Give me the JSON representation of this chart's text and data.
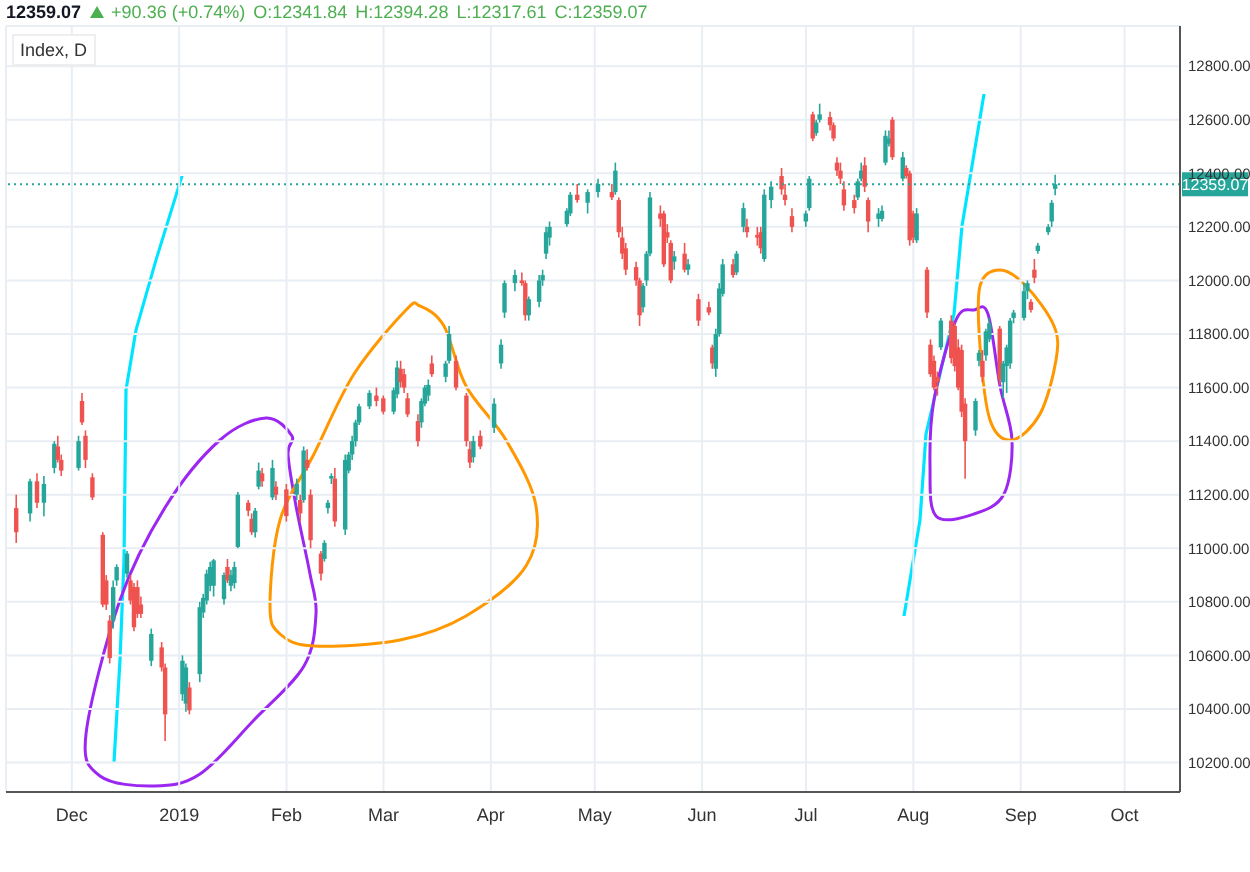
{
  "chart_data": {
    "type": "candlestick",
    "title": "Index, D",
    "annotations": [
      "12359.07",
      "+90.36 (+0.74%)",
      "O:12341.84",
      "H:12394.28",
      "L:12317.61",
      "C:12359.07"
    ],
    "colors": [
      "#ef5350",
      "#26a69a",
      "#ef5350",
      "#26a69a",
      "#26a69a",
      "#ef5350",
      "#ef5350",
      "#26a69a",
      "#ef5350",
      "#ef5350",
      "#ef5350",
      "#ef5350",
      "#ef5350",
      "#ef5350",
      "#26a69a",
      "#26a69a",
      "#26a69a",
      "#ef5350",
      "#ef5350",
      "#ef5350",
      "#ef5350",
      "#26a69a",
      "#ef5350",
      "#ef5350",
      "#26a69a",
      "#26a69a",
      "#ef5350",
      "#26a69a",
      "#26a69a",
      "#26a69a",
      "#26a69a",
      "#26a69a",
      "#26a69a",
      "#ef5350",
      "#26a69a",
      "#26a69a",
      "#26a69a",
      "#ef5350",
      "#ef5350",
      "#26a69a",
      "#26a69a",
      "#ef5350",
      "#26a69a",
      "#ef5350",
      "#ef5350",
      "#26a69a",
      "#ef5350",
      "#26a69a",
      "#ef5350",
      "#ef5350",
      "#ef5350",
      "#26a69a",
      "#26a69a",
      "#26a69a",
      "#ef5350",
      "#26a69a",
      "#26a69a",
      "#26a69a",
      "#26a69a",
      "#26a69a",
      "#26a69a",
      "#ef5350",
      "#ef5350",
      "#26a69a",
      "#26a69a",
      "#ef5350",
      "#ef5350",
      "#ef5350",
      "#ef5350",
      "#26a69a",
      "#26a69a",
      "#26a69a",
      "#ef5350",
      "#26a69a",
      "#26a69a",
      "#ef5350",
      "#ef5350",
      "#ef5350",
      "#26a69a",
      "#ef5350",
      "#26a69a",
      "#26a69a",
      "#26a69a",
      "#26a69a",
      "#ef5350",
      "#ef5350",
      "#26a69a",
      "#26a69a",
      "#26a69a",
      "#26a69a",
      "#26a69a",
      "#26a69a",
      "#26a69a",
      "#ef5350",
      "#26a69a",
      "#26a69a",
      "#ef5350",
      "#26a69a",
      "#ef5350",
      "#ef5350",
      "#ef5350",
      "#ef5350",
      "#ef5350",
      "#26a69a",
      "#26a69a",
      "#26a69a",
      "#ef5350",
      "#ef5350",
      "#ef5350",
      "#ef5350",
      "#26a69a",
      "#ef5350",
      "#26a69a",
      "#ef5350",
      "#ef5350",
      "#ef5350",
      "#26a69a",
      "#26a69a",
      "#26a69a",
      "#ef5350",
      "#26a69a",
      "#26a69a",
      "#ef5350",
      "#ef5350",
      "#ef5350",
      "#26a69a",
      "#26a69a",
      "#ef5350",
      "#ef5350",
      "#ef5350",
      "#26a69a",
      "#26a69a",
      "#ef5350",
      "#26a69a",
      "#26a69a",
      "#ef5350",
      "#ef5350",
      "#ef5350",
      "#ef5350",
      "#ef5350",
      "#ef5350",
      "#26a69a",
      "#26a69a",
      "#ef5350",
      "#ef5350",
      "#26a69a",
      "#26a69a",
      "#26a69a",
      "#26a69a",
      "#ef5350",
      "#26a69a",
      "#ef5350",
      "#ef5350",
      "#ef5350",
      "#26a69a",
      "#ef5350",
      "#ef5350",
      "#ef5350",
      "#ef5350",
      "#26a69a",
      "#ef5350",
      "#ef5350",
      "#ef5350",
      "#ef5350",
      "#ef5350",
      "#26a69a",
      "#26a69a",
      "#ef5350",
      "#26a69a",
      "#26a69a",
      "#ef5350",
      "#26a69a",
      "#26a69a",
      "#26a69a",
      "#26a69a",
      "#26a69a",
      "#26a69a",
      "#ef5350",
      "#ef5350",
      "#26a69a",
      "#26a69a",
      "#26a69a",
      "#26a69a"
    ],
    "x": [
      "2018-11-15",
      "2018-11-19",
      "2018-11-21",
      "2018-11-23",
      "2018-11-26",
      "2018-11-27",
      "2018-11-28",
      "2018-12-03",
      "2018-12-04",
      "2018-12-05",
      "2018-12-07",
      "2018-12-10",
      "2018-12-11",
      "2018-12-12",
      "2018-12-13",
      "2018-12-14",
      "2018-12-17",
      "2018-12-18",
      "2018-12-19",
      "2018-12-20",
      "2018-12-21",
      "2018-12-24",
      "2018-12-27",
      "2018-12-28",
      "2019-01-02",
      "2019-01-03",
      "2019-01-04",
      "2019-01-07",
      "2019-01-08",
      "2019-01-09",
      "2019-01-10",
      "2019-01-11",
      "2019-01-14",
      "2019-01-15",
      "2019-01-16",
      "2019-01-17",
      "2019-01-18",
      "2019-01-21",
      "2019-01-22",
      "2019-01-23",
      "2019-01-24",
      "2019-01-25",
      "2019-01-28",
      "2019-01-29",
      "2019-02-01",
      "2019-02-04",
      "2019-02-05",
      "2019-02-06",
      "2019-02-07",
      "2019-02-08",
      "2019-02-11",
      "2019-02-12",
      "2019-02-13",
      "2019-02-14",
      "2019-02-15",
      "2019-02-18",
      "2019-02-19",
      "2019-02-20",
      "2019-02-21",
      "2019-02-22",
      "2019-02-25",
      "2019-02-27",
      "2019-03-01",
      "2019-03-04",
      "2019-03-05",
      "2019-03-06",
      "2019-03-07",
      "2019-03-08",
      "2019-03-11",
      "2019-03-12",
      "2019-03-13",
      "2019-03-14",
      "2019-03-15",
      "2019-03-19",
      "2019-03-20",
      "2019-03-22",
      "2019-03-25",
      "2019-03-26",
      "2019-03-27",
      "2019-03-29",
      "2019-04-02",
      "2019-04-04",
      "2019-04-05",
      "2019-04-08",
      "2019-04-10",
      "2019-04-11",
      "2019-04-12",
      "2019-04-15",
      "2019-04-16",
      "2019-04-17",
      "2019-04-18",
      "2019-04-23",
      "2019-04-24",
      "2019-04-26",
      "2019-04-29",
      "2019-05-02",
      "2019-05-06",
      "2019-05-07",
      "2019-05-08",
      "2019-05-09",
      "2019-05-10",
      "2019-05-13",
      "2019-05-14",
      "2019-05-15",
      "2019-05-16",
      "2019-05-17",
      "2019-05-20",
      "2019-05-21",
      "2019-05-22",
      "2019-05-23",
      "2019-05-24",
      "2019-05-27",
      "2019-05-28",
      "2019-05-31",
      "2019-06-03",
      "2019-06-04",
      "2019-06-05",
      "2019-06-06",
      "2019-06-07",
      "2019-06-10",
      "2019-06-11",
      "2019-06-13",
      "2019-06-14",
      "2019-06-17",
      "2019-06-18",
      "2019-06-19",
      "2019-06-21",
      "2019-06-24",
      "2019-06-25",
      "2019-06-27",
      "2019-07-01",
      "2019-07-02",
      "2019-07-03",
      "2019-07-04",
      "2019-07-05",
      "2019-07-08",
      "2019-07-09",
      "2019-07-10",
      "2019-07-11",
      "2019-07-12",
      "2019-07-15",
      "2019-07-16",
      "2019-07-17",
      "2019-07-18",
      "2019-07-19",
      "2019-07-22",
      "2019-07-23",
      "2019-07-24",
      "2019-07-25",
      "2019-07-26",
      "2019-07-29",
      "2019-07-30",
      "2019-07-31",
      "2019-08-01",
      "2019-08-02",
      "2019-08-05",
      "2019-08-06",
      "2019-08-07",
      "2019-08-08",
      "2019-08-09",
      "2019-08-12",
      "2019-08-13",
      "2019-08-14",
      "2019-08-15",
      "2019-08-16",
      "2019-08-19",
      "2019-08-20",
      "2019-08-21",
      "2019-08-22",
      "2019-08-23",
      "2019-08-26",
      "2019-08-27",
      "2019-08-28",
      "2019-08-29",
      "2019-08-30",
      "2019-09-02",
      "2019-09-03",
      "2019-09-04",
      "2019-09-05",
      "2019-09-06",
      "2019-09-09",
      "2019-09-10",
      "2019-09-11"
    ],
    "ohlc": [
      [
        11150,
        11200,
        11020,
        11060
      ],
      [
        11130,
        11260,
        11100,
        11250
      ],
      [
        11250,
        11280,
        11150,
        11170
      ],
      [
        11170,
        11270,
        11120,
        11240
      ],
      [
        11300,
        11400,
        11280,
        11390
      ],
      [
        11380,
        11420,
        11320,
        11330
      ],
      [
        11330,
        11350,
        11270,
        11290
      ],
      [
        11300,
        11420,
        11290,
        11400
      ],
      [
        11550,
        11580,
        11460,
        11470
      ],
      [
        11420,
        11440,
        11300,
        11330
      ],
      [
        11265,
        11280,
        11180,
        11190
      ],
      [
        11050,
        11060,
        10780,
        10790
      ],
      [
        10880,
        10900,
        10770,
        10790
      ],
      [
        10730,
        10750,
        10570,
        10590
      ],
      [
        10730,
        10880,
        10700,
        10855
      ],
      [
        10880,
        10940,
        10860,
        10930
      ],
      [
        10905,
        10990,
        10890,
        10980
      ],
      [
        10880,
        10900,
        10790,
        10805
      ],
      [
        10855,
        10870,
        10690,
        10705
      ],
      [
        10855,
        10880,
        10740,
        10755
      ],
      [
        10790,
        10820,
        10740,
        10755
      ],
      [
        10580,
        10700,
        10560,
        10680
      ],
      [
        10630,
        10650,
        10540,
        10555
      ],
      [
        10555,
        10570,
        10280,
        10380
      ],
      [
        10455,
        10600,
        10430,
        10580
      ],
      [
        10420,
        10570,
        10390,
        10555
      ],
      [
        10480,
        10500,
        10380,
        10395
      ],
      [
        10530,
        10800,
        10500,
        10780
      ],
      [
        10760,
        10830,
        10740,
        10815
      ],
      [
        10805,
        10920,
        10790,
        10905
      ],
      [
        10860,
        10950,
        10840,
        10930
      ],
      [
        10860,
        10960,
        10820,
        10955
      ],
      [
        10810,
        10910,
        10790,
        10900
      ],
      [
        10930,
        10960,
        10870,
        10880
      ],
      [
        10860,
        10920,
        10840,
        10900
      ],
      [
        10870,
        10950,
        10850,
        10930
      ],
      [
        11005,
        11210,
        11000,
        11200
      ],
      [
        11170,
        11180,
        11120,
        11140
      ],
      [
        11110,
        11130,
        11050,
        11060
      ],
      [
        11060,
        11150,
        11040,
        11140
      ],
      [
        11230,
        11320,
        11220,
        11290
      ],
      [
        11280,
        11300,
        11230,
        11250
      ],
      [
        11190,
        11330,
        11180,
        11300
      ],
      [
        11230,
        11250,
        11180,
        11200
      ],
      [
        11220,
        11240,
        11100,
        11120
      ],
      [
        11200,
        11260,
        11180,
        11240
      ],
      [
        11180,
        11200,
        11100,
        11130
      ],
      [
        11180,
        11380,
        11170,
        11365
      ],
      [
        11330,
        11370,
        11290,
        11300
      ],
      [
        11200,
        11220,
        11000,
        11030
      ],
      [
        10980,
        10990,
        10880,
        10905
      ],
      [
        10960,
        11030,
        10950,
        11020
      ],
      [
        11150,
        11180,
        11130,
        11170
      ],
      [
        11260,
        11280,
        11240,
        11270
      ],
      [
        11260,
        11300,
        11080,
        11100
      ],
      [
        11070,
        11350,
        11050,
        11330
      ],
      [
        11290,
        11360,
        11280,
        11350
      ],
      [
        11350,
        11420,
        11330,
        11400
      ],
      [
        11400,
        11480,
        11380,
        11470
      ],
      [
        11470,
        11540,
        11460,
        11530
      ],
      [
        11530,
        11590,
        11520,
        11580
      ],
      [
        11570,
        11600,
        11530,
        11550
      ],
      [
        11560,
        11570,
        11500,
        11510
      ],
      [
        11510,
        11600,
        11500,
        11590
      ],
      [
        11575,
        11700,
        11560,
        11675
      ],
      [
        11670,
        11700,
        11600,
        11620
      ],
      [
        11650,
        11670,
        11580,
        11600
      ],
      [
        11560,
        11580,
        11490,
        11500
      ],
      [
        11475,
        11500,
        11380,
        11400
      ],
      [
        11470,
        11560,
        11450,
        11550
      ],
      [
        11540,
        11610,
        11530,
        11600
      ],
      [
        11570,
        11630,
        11550,
        11610
      ],
      [
        11690,
        11720,
        11640,
        11650
      ],
      [
        11640,
        11700,
        11620,
        11690
      ],
      [
        11700,
        11830,
        11690,
        11800
      ],
      [
        11700,
        11720,
        11590,
        11600
      ],
      [
        11570,
        11580,
        11380,
        11400
      ],
      [
        11370,
        11400,
        11300,
        11320
      ],
      [
        11340,
        11420,
        11320,
        11400
      ],
      [
        11420,
        11440,
        11370,
        11380
      ],
      [
        11450,
        11560,
        11430,
        11540
      ],
      [
        11690,
        11780,
        11670,
        11760
      ],
      [
        11880,
        12000,
        11860,
        11990
      ],
      [
        11990,
        12040,
        11960,
        12020
      ],
      [
        12000,
        12030,
        11980,
        11990
      ],
      [
        11990,
        12000,
        11850,
        11870
      ],
      [
        11870,
        11940,
        11850,
        11930
      ],
      [
        11920,
        12020,
        11900,
        12000
      ],
      [
        12000,
        12040,
        11980,
        12020
      ],
      [
        12100,
        12200,
        12080,
        12180
      ],
      [
        12160,
        12220,
        12130,
        12200
      ],
      [
        12210,
        12270,
        12200,
        12260
      ],
      [
        12250,
        12330,
        12240,
        12320
      ],
      [
        12320,
        12360,
        12290,
        12300
      ],
      [
        12290,
        12340,
        12250,
        12330
      ],
      [
        12330,
        12380,
        12310,
        12360
      ],
      [
        12330,
        12360,
        12300,
        12310
      ],
      [
        12330,
        12440,
        12320,
        12410
      ],
      [
        12300,
        12310,
        12160,
        12180
      ],
      [
        12160,
        12200,
        12080,
        12100
      ],
      [
        12120,
        12140,
        12020,
        12040
      ],
      [
        12050,
        12070,
        11980,
        12000
      ],
      [
        12000,
        12010,
        11830,
        11870
      ],
      [
        11900,
        11990,
        11880,
        11980
      ],
      [
        12000,
        12110,
        11980,
        12100
      ],
      [
        12100,
        12330,
        12090,
        12310
      ],
      [
        12250,
        12280,
        12200,
        12230
      ],
      [
        12250,
        12260,
        12050,
        12060
      ],
      [
        12180,
        12210,
        12140,
        12160
      ],
      [
        12140,
        12150,
        11990,
        12000
      ],
      [
        12070,
        12110,
        12040,
        12090
      ],
      [
        12100,
        12140,
        12030,
        12040
      ],
      [
        12040,
        12080,
        12020,
        12060
      ],
      [
        11930,
        11950,
        11830,
        11850
      ],
      [
        11900,
        11920,
        11870,
        11880
      ],
      [
        11750,
        11760,
        11670,
        11690
      ],
      [
        11670,
        11820,
        11640,
        11800
      ],
      [
        11800,
        11990,
        11790,
        11970
      ],
      [
        11950,
        12080,
        11940,
        12060
      ],
      [
        12060,
        12080,
        12010,
        12020
      ],
      [
        12030,
        12110,
        12020,
        12100
      ],
      [
        12200,
        12290,
        12180,
        12270
      ],
      [
        12200,
        12230,
        12160,
        12180
      ],
      [
        12170,
        12200,
        12130,
        12160
      ],
      [
        12180,
        12200,
        12100,
        12120
      ],
      [
        12080,
        12340,
        12070,
        12320
      ],
      [
        12300,
        12370,
        12270,
        12350
      ],
      [
        12390,
        12420,
        12320,
        12340
      ],
      [
        12320,
        12360,
        12280,
        12300
      ],
      [
        12240,
        12270,
        12180,
        12200
      ],
      [
        12220,
        12260,
        12200,
        12250
      ],
      [
        12270,
        12390,
        12260,
        12380
      ],
      [
        12620,
        12630,
        12520,
        12530
      ],
      [
        12550,
        12600,
        12540,
        12590
      ],
      [
        12600,
        12660,
        12590,
        12620
      ],
      [
        12610,
        12630,
        12560,
        12580
      ],
      [
        12580,
        12590,
        12520,
        12530
      ],
      [
        12440,
        12460,
        12390,
        12410
      ],
      [
        12410,
        12440,
        12360,
        12380
      ],
      [
        12340,
        12370,
        12260,
        12280
      ],
      [
        12300,
        12320,
        12250,
        12270
      ],
      [
        12310,
        12380,
        12300,
        12370
      ],
      [
        12380,
        12440,
        12370,
        12410
      ],
      [
        12430,
        12460,
        12330,
        12350
      ],
      [
        12300,
        12310,
        12180,
        12220
      ],
      [
        12230,
        12270,
        12200,
        12250
      ],
      [
        12230,
        12280,
        12220,
        12260
      ],
      [
        12440,
        12560,
        12430,
        12540
      ],
      [
        12510,
        12560,
        12500,
        12530
      ],
      [
        12600,
        12610,
        12450,
        12460
      ],
      [
        12380,
        12480,
        12370,
        12460
      ],
      [
        12420,
        12430,
        12380,
        12390
      ],
      [
        12400,
        12410,
        12130,
        12150
      ],
      [
        12250,
        12260,
        12140,
        12160
      ],
      [
        12150,
        12270,
        12140,
        12250
      ],
      [
        12040,
        12050,
        11860,
        11880
      ],
      [
        11760,
        11780,
        11640,
        11650
      ],
      [
        11700,
        11720,
        11590,
        11600
      ],
      [
        11640,
        11660,
        11570,
        11620
      ],
      [
        11750,
        11860,
        11740,
        11850
      ],
      [
        11850,
        11870,
        11690,
        11710
      ],
      [
        11830,
        11840,
        11660,
        11680
      ],
      [
        11750,
        11780,
        11590,
        11600
      ],
      [
        11740,
        11760,
        11490,
        11510
      ],
      [
        11540,
        11560,
        11260,
        11400
      ],
      [
        11440,
        11560,
        11420,
        11550
      ],
      [
        11700,
        11740,
        11680,
        11730
      ],
      [
        11700,
        11740,
        11620,
        11640
      ],
      [
        11720,
        11820,
        11700,
        11810
      ],
      [
        11780,
        11860,
        11770,
        11840
      ],
      [
        11820,
        11830,
        11610,
        11630
      ],
      [
        11620,
        11700,
        11560,
        11690
      ],
      [
        11680,
        11760,
        11580,
        11750
      ],
      [
        11690,
        11860,
        11670,
        11850
      ],
      [
        11860,
        11890,
        11840,
        11880
      ],
      [
        11860,
        11990,
        11850,
        11960
      ],
      [
        11960,
        12000,
        11930,
        11990
      ],
      [
        11920,
        11930,
        11880,
        11890
      ],
      [
        12040,
        12080,
        11990,
        12010
      ],
      [
        12110,
        12140,
        12100,
        12130
      ],
      [
        12180,
        12210,
        12170,
        12200
      ],
      [
        12220,
        12300,
        12200,
        12290
      ],
      [
        12341.84,
        12394.28,
        12317.61,
        12359.07
      ]
    ],
    "xlim": [
      "2018-11-12",
      "2019-10-17"
    ],
    "xticks": [
      {
        "value": "2018-12-01",
        "label": "Dec"
      },
      {
        "value": "2019-01-01",
        "label": "2019"
      },
      {
        "value": "2019-02-01",
        "label": "Feb"
      },
      {
        "value": "2019-03-01",
        "label": "Mar"
      },
      {
        "value": "2019-04-01",
        "label": "Apr"
      },
      {
        "value": "2019-05-01",
        "label": "May"
      },
      {
        "value": "2019-06-01",
        "label": "Jun"
      },
      {
        "value": "2019-07-01",
        "label": "Jul"
      },
      {
        "value": "2019-08-01",
        "label": "Aug"
      },
      {
        "value": "2019-09-01",
        "label": "Sep"
      },
      {
        "value": "2019-10-01",
        "label": "Oct"
      }
    ],
    "ylim": [
      10090,
      12950
    ],
    "yticks": [
      {
        "value": 10200,
        "label": "10200.00"
      },
      {
        "value": 10400,
        "label": "10400.00"
      },
      {
        "value": 10600,
        "label": "10600.00"
      },
      {
        "value": 10800,
        "label": "10800.00"
      },
      {
        "value": 11000,
        "label": "11000.00"
      },
      {
        "value": 11200,
        "label": "11200.00"
      },
      {
        "value": 11400,
        "label": "11400.00"
      },
      {
        "value": 11600,
        "label": "11600.00"
      },
      {
        "value": 11800,
        "label": "11800.00"
      },
      {
        "value": 12000,
        "label": "12000.00"
      },
      {
        "value": 12200,
        "label": "12200.00"
      },
      {
        "value": 12400,
        "label": "12400.00"
      },
      {
        "value": 12600,
        "label": "12600.00"
      },
      {
        "value": 12800,
        "label": "12800.00"
      }
    ],
    "ref_lines": [
      {
        "axis": "y",
        "value": 12359.07,
        "label": "12359.07",
        "color": "#26a69a",
        "line_style": "dotted"
      }
    ],
    "grid": true
  }
}
